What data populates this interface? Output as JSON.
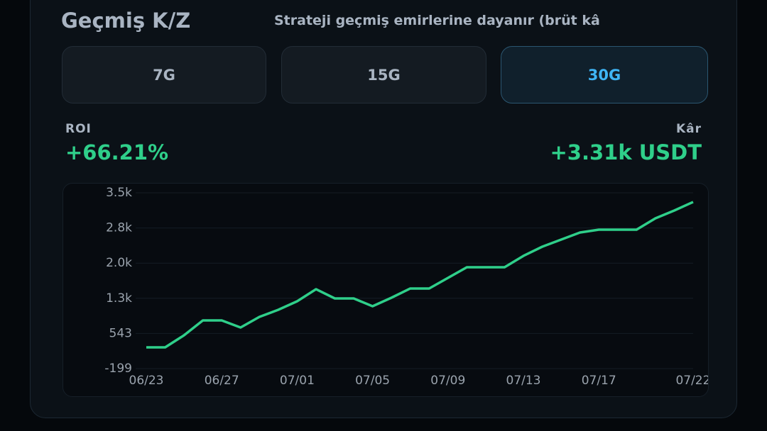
{
  "header": {
    "title": "Geçmiş K/Z",
    "subtitle": "Strateji geçmiş emirlerine dayanır (brüt kâ"
  },
  "periods": [
    {
      "label": "7G",
      "selected": false
    },
    {
      "label": "15G",
      "selected": false
    },
    {
      "label": "30G",
      "selected": true
    }
  ],
  "stats": {
    "roi_label": "ROI",
    "roi_value": "+66.21%",
    "profit_label": "Kâr",
    "profit_value": "+3.31k USDT"
  },
  "chart_data": {
    "type": "line",
    "categories": [
      "06/23",
      null,
      null,
      null,
      "06/27",
      null,
      null,
      null,
      "07/01",
      null,
      null,
      null,
      "07/05",
      null,
      null,
      null,
      "07/09",
      null,
      null,
      null,
      "07/13",
      null,
      null,
      null,
      "07/17",
      null,
      null,
      null,
      null,
      "07/22"
    ],
    "series": [
      {
        "color": "#2fcf8a",
        "values": [
          250,
          250,
          504,
          818,
          818,
          669,
          893,
          1043,
          1222,
          1477,
          1282,
          1282,
          1117,
          1297,
          1492,
          1492,
          1716,
          1940,
          1940,
          1940,
          2180,
          2374,
          2524,
          2673,
          2733,
          2733,
          2733,
          2973,
          3137,
          3317
        ]
      }
    ],
    "ylim": [
      -199,
      3511
    ],
    "yticks": [
      -199,
      543,
      {
        "value": 1285,
        "label": "1.3k"
      },
      {
        "value": 2027,
        "label": "2.0k"
      },
      {
        "value": 2769,
        "label": "2.8k"
      },
      {
        "value": 3511,
        "label": "3.5k"
      }
    ],
    "grid": true
  }
}
